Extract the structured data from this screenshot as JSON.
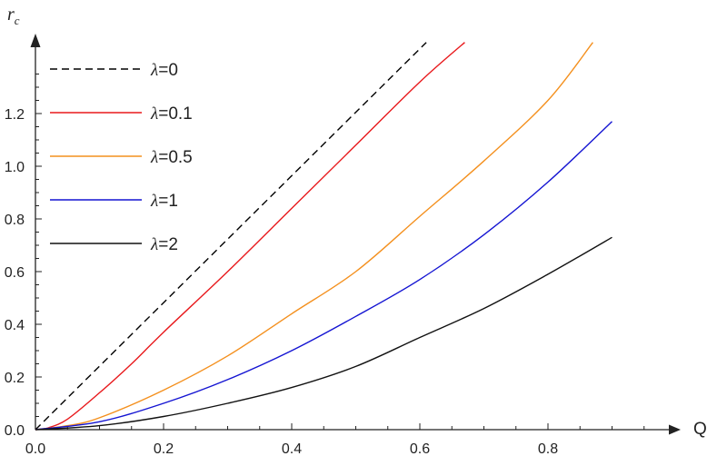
{
  "chart_data": {
    "type": "line",
    "xlabel": "Q",
    "ylabel_main": "r",
    "ylabel_sub": "c",
    "xlim": [
      0,
      1.0
    ],
    "ylim": [
      0,
      1.5
    ],
    "x_ticks": [
      0.0,
      0.2,
      0.4,
      0.6,
      0.8
    ],
    "x_tick_labels": [
      "0.0",
      "0.2",
      "0.4",
      "0.6",
      "0.8"
    ],
    "y_ticks": [
      0.0,
      0.2,
      0.4,
      0.6,
      0.8,
      1.0,
      1.2
    ],
    "y_tick_labels": [
      "0.0",
      "0.2",
      "0.4",
      "0.6",
      "0.8",
      "1.0",
      "1.2"
    ],
    "grid": false,
    "legend_placement": "top-left",
    "series": [
      {
        "name": "λ=0",
        "color": "#000000",
        "dash": true,
        "x": [
          0,
          0.61
        ],
        "y": [
          0,
          1.47
        ]
      },
      {
        "name": "λ=0.1",
        "color": "#e8191c",
        "dash": false,
        "x": [
          0,
          0.02,
          0.05,
          0.1,
          0.15,
          0.2,
          0.3,
          0.4,
          0.5,
          0.6,
          0.67
        ],
        "y": [
          0,
          0.007,
          0.04,
          0.14,
          0.25,
          0.37,
          0.6,
          0.84,
          1.08,
          1.32,
          1.47
        ]
      },
      {
        "name": "λ=0.5",
        "color": "#f4901e",
        "dash": false,
        "x": [
          0,
          0.05,
          0.1,
          0.2,
          0.3,
          0.4,
          0.5,
          0.6,
          0.7,
          0.8,
          0.87
        ],
        "y": [
          0,
          0.015,
          0.045,
          0.15,
          0.28,
          0.44,
          0.6,
          0.81,
          1.02,
          1.25,
          1.47
        ]
      },
      {
        "name": "λ=1",
        "color": "#1414d2",
        "dash": false,
        "x": [
          0,
          0.1,
          0.2,
          0.3,
          0.4,
          0.5,
          0.6,
          0.7,
          0.8,
          0.9
        ],
        "y": [
          0,
          0.03,
          0.1,
          0.19,
          0.3,
          0.43,
          0.57,
          0.74,
          0.94,
          1.17
        ]
      },
      {
        "name": "λ=2",
        "color": "#111111",
        "dash": false,
        "x": [
          0,
          0.1,
          0.2,
          0.3,
          0.4,
          0.5,
          0.6,
          0.7,
          0.8,
          0.9
        ],
        "y": [
          0,
          0.015,
          0.05,
          0.1,
          0.16,
          0.24,
          0.35,
          0.46,
          0.59,
          0.73
        ]
      }
    ]
  }
}
